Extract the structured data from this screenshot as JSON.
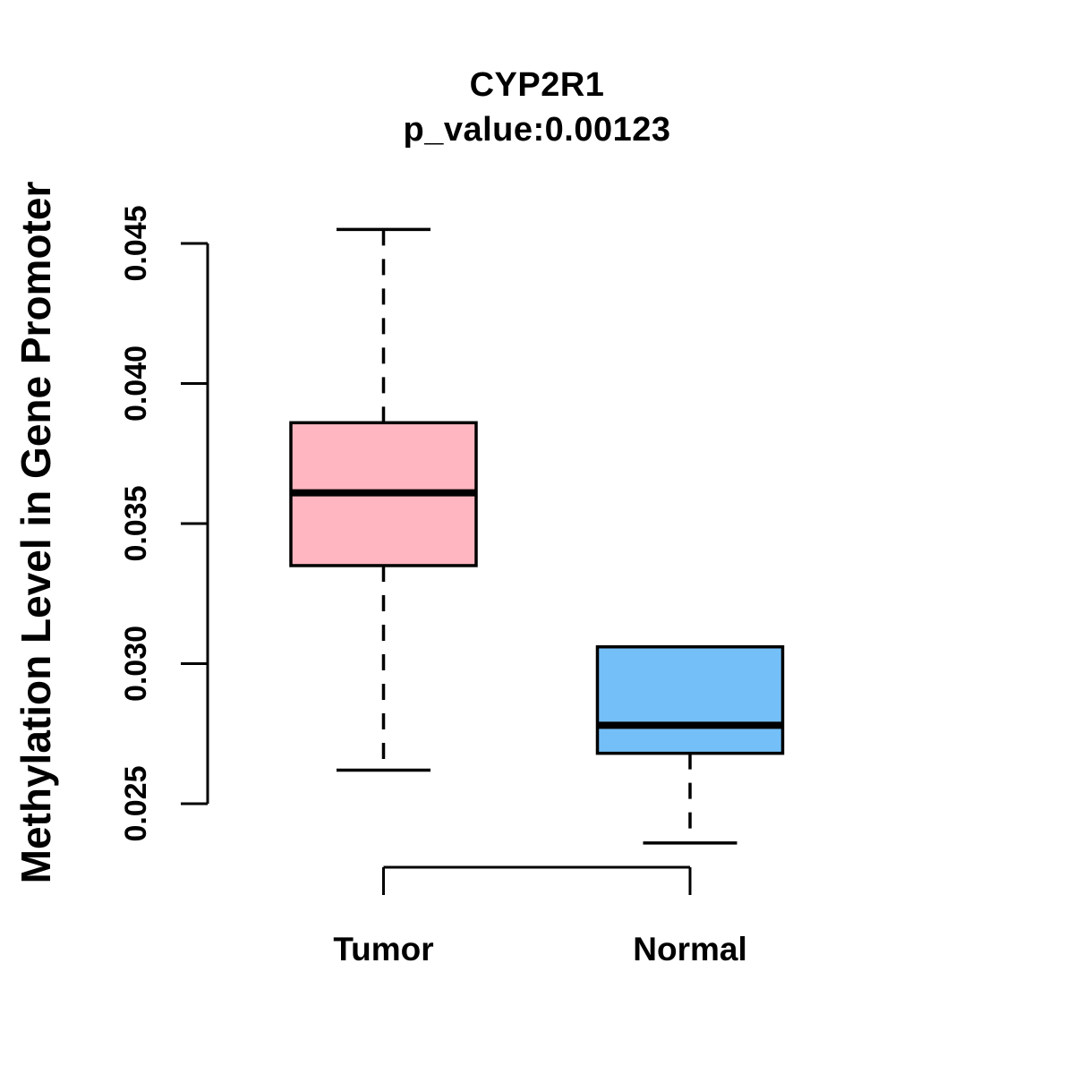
{
  "figure": {
    "background": "#ffffff",
    "text_color": "#000000"
  },
  "chart_data": {
    "type": "boxplot",
    "title": "CYP2R1",
    "subtitle": "p_value:0.00123",
    "ylabel": "Methylation Level in Gene Promoter",
    "xlabel": "",
    "yticks": [
      0.025,
      0.03,
      0.035,
      0.04,
      0.045
    ],
    "ytick_labels": [
      "0.025",
      "0.030",
      "0.035",
      "0.040",
      "0.045"
    ],
    "ylim": [
      0.0236,
      0.0455
    ],
    "grid": "off",
    "legend": "none",
    "categories": [
      "Tumor",
      "Normal"
    ],
    "groups": [
      {
        "label": "Tumor",
        "fill_color": "#FFB6C1",
        "whisker_low": 0.0262,
        "q1": 0.0335,
        "median": 0.0361,
        "q3": 0.0386,
        "whisker_high": 0.0455
      },
      {
        "label": "Normal",
        "fill_color": "#74BFF7",
        "whisker_low": 0.0236,
        "q1": 0.0268,
        "median": 0.0278,
        "q3": 0.0306,
        "whisker_high": 0.0306
      }
    ],
    "stroke_color": "#000000"
  }
}
